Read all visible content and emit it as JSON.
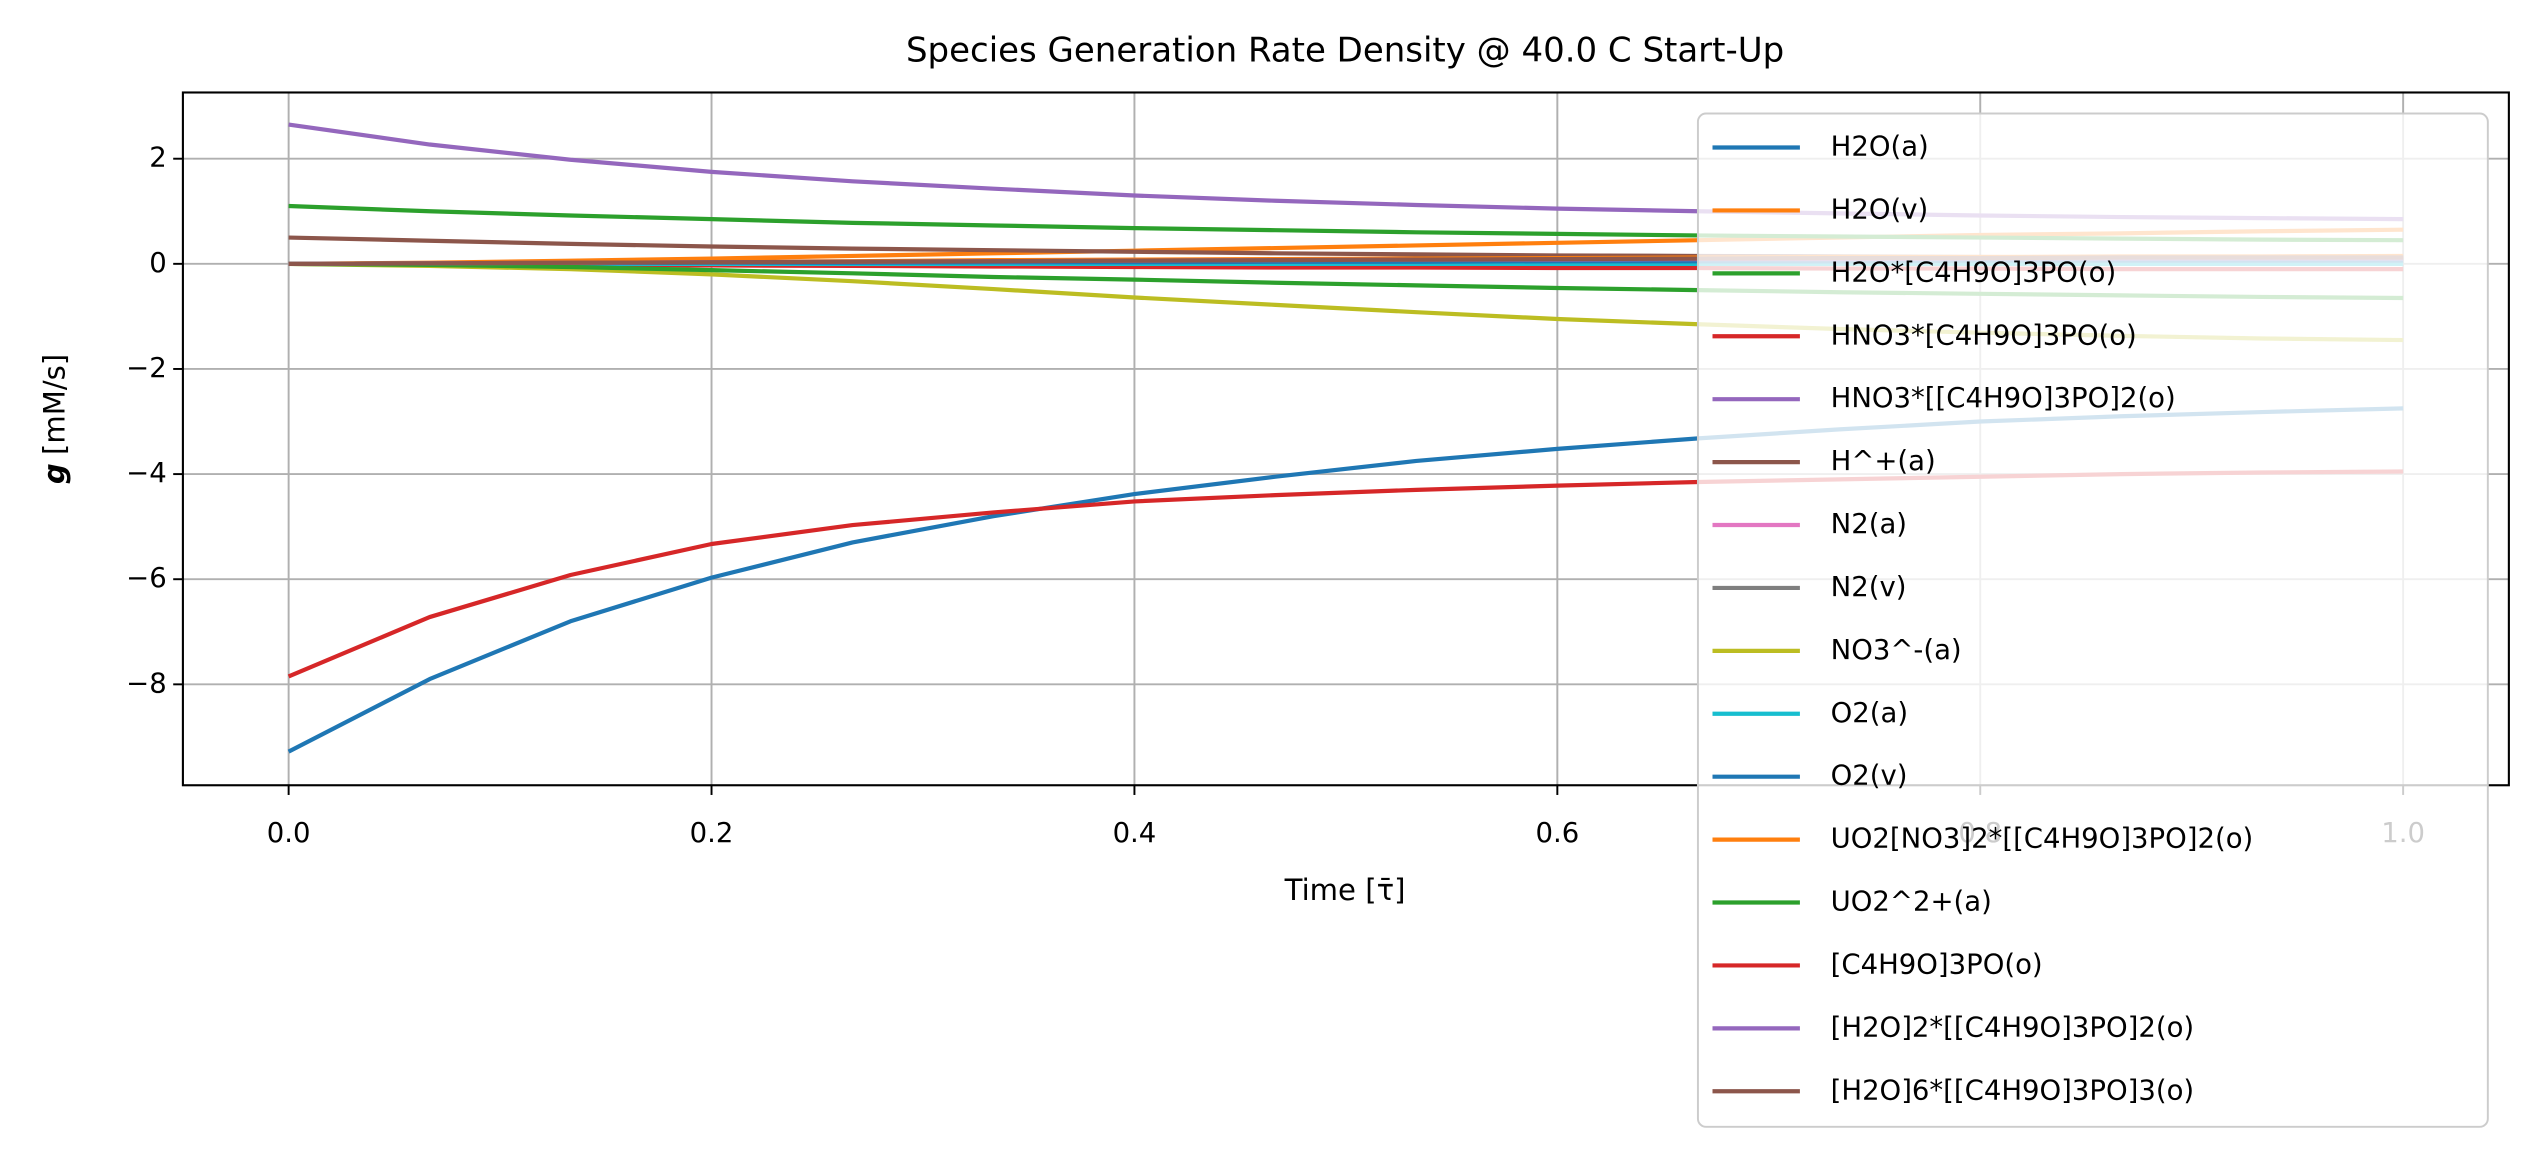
{
  "chart_data": {
    "type": "line",
    "title": "Species Generation Rate Density @ 40.0 C Start-Up",
    "x_label": "Time [τ̄]",
    "y_label_symbol": "g",
    "y_label_unit": "[mM/s]",
    "x": [
      0,
      0.0667,
      0.1333,
      0.2,
      0.2667,
      0.3333,
      0.4,
      0.4667,
      0.5333,
      0.6,
      0.6667,
      0.7333,
      0.8,
      0.8667,
      0.9333,
      1.0
    ],
    "xlim": [
      -0.05,
      1.05
    ],
    "xticks": [
      {
        "value": 0,
        "label": "0.0"
      },
      0.2,
      0.4,
      0.6,
      0.8,
      {
        "value": 1,
        "label": "1.0"
      }
    ],
    "ylim": [
      -9.92,
      3.26
    ],
    "yticks": [
      {
        "value": -8,
        "label": "−8"
      },
      {
        "value": -6,
        "label": "−6"
      },
      {
        "value": -4,
        "label": "−4"
      },
      {
        "value": -2,
        "label": "−2"
      },
      0,
      2
    ],
    "grid": true,
    "legend": "upper right",
    "series": [
      {
        "name": "H2O(a)",
        "color": "#1f77b4",
        "values": [
          -9.28,
          -7.9,
          -6.8,
          -5.97,
          -5.3,
          -4.8,
          -4.38,
          -4.05,
          -3.75,
          -3.52,
          -3.32,
          -3.15,
          -3.0,
          -2.9,
          -2.82,
          -2.75
        ]
      },
      {
        "name": "H2O(v)",
        "color": "#ff7f0e",
        "values": [
          0,
          0.02,
          0.06,
          0.1,
          0.15,
          0.2,
          0.25,
          0.3,
          0.35,
          0.4,
          0.45,
          0.5,
          0.55,
          0.58,
          0.62,
          0.65
        ]
      },
      {
        "name": "H2O*[C4H9O]3PO(o)",
        "color": "#2ca02c",
        "values": [
          1.1,
          1.0,
          0.92,
          0.85,
          0.78,
          0.73,
          0.68,
          0.64,
          0.6,
          0.57,
          0.54,
          0.52,
          0.5,
          0.48,
          0.46,
          0.45
        ]
      },
      {
        "name": "HNO3*[C4H9O]3PO(o)",
        "color": "#d62728",
        "values": [
          0,
          -0.01,
          -0.02,
          -0.03,
          -0.04,
          -0.05,
          -0.06,
          -0.07,
          -0.07,
          -0.08,
          -0.08,
          -0.09,
          -0.09,
          -0.1,
          -0.1,
          -0.1
        ]
      },
      {
        "name": "HNO3*[[C4H9O]3PO]2(o)",
        "color": "#9467bd",
        "values": [
          2.65,
          2.27,
          1.98,
          1.75,
          1.57,
          1.43,
          1.3,
          1.2,
          1.12,
          1.05,
          1.0,
          0.96,
          0.92,
          0.89,
          0.87,
          0.85
        ]
      },
      {
        "name": "H^+(a)",
        "color": "#8c564b",
        "values": [
          0.5,
          0.44,
          0.38,
          0.33,
          0.29,
          0.26,
          0.23,
          0.2,
          0.18,
          0.16,
          0.15,
          0.14,
          0.13,
          0.12,
          0.11,
          0.1
        ]
      },
      {
        "name": "N2(a)",
        "color": "#e377c2",
        "values": [
          0,
          0,
          0,
          0,
          0,
          0,
          0,
          0,
          0,
          0,
          0,
          0,
          0,
          0,
          0,
          0
        ]
      },
      {
        "name": "N2(v)",
        "color": "#7f7f7f",
        "values": [
          0,
          0,
          0,
          0,
          0,
          0,
          0,
          0,
          0,
          0,
          0,
          0,
          0,
          0,
          0,
          0
        ]
      },
      {
        "name": "NO3^-(a)",
        "color": "#bcbd22",
        "values": [
          0,
          -0.04,
          -0.1,
          -0.2,
          -0.33,
          -0.48,
          -0.64,
          -0.78,
          -0.92,
          -1.05,
          -1.15,
          -1.24,
          -1.31,
          -1.37,
          -1.42,
          -1.45
        ]
      },
      {
        "name": "O2(a)",
        "color": "#17becf",
        "values": [
          0,
          0,
          0,
          0,
          0,
          0,
          0,
          0,
          0,
          0,
          0,
          0,
          0,
          0,
          0,
          0
        ]
      },
      {
        "name": "O2(v)",
        "color": "#1f77b4",
        "values": [
          0,
          0.01,
          0.01,
          0.02,
          0.02,
          0.03,
          0.03,
          0.04,
          0.04,
          0.05,
          0.05,
          0.05,
          0.06,
          0.06,
          0.06,
          0.06
        ]
      },
      {
        "name": "UO2[NO3]2*[[C4H9O]3PO]2(o)",
        "color": "#ff7f0e",
        "values": [
          0,
          0.01,
          0.02,
          0.04,
          0.05,
          0.07,
          0.08,
          0.09,
          0.1,
          0.11,
          0.12,
          0.13,
          0.13,
          0.14,
          0.14,
          0.15
        ]
      },
      {
        "name": "UO2^2+(a)",
        "color": "#2ca02c",
        "values": [
          0,
          -0.02,
          -0.06,
          -0.12,
          -0.18,
          -0.25,
          -0.3,
          -0.36,
          -0.41,
          -0.46,
          -0.5,
          -0.54,
          -0.57,
          -0.6,
          -0.63,
          -0.65
        ]
      },
      {
        "name": "[C4H9O]3PO(o)",
        "color": "#d62728",
        "values": [
          -7.85,
          -6.72,
          -5.92,
          -5.33,
          -4.97,
          -4.73,
          -4.52,
          -4.4,
          -4.3,
          -4.22,
          -4.15,
          -4.1,
          -4.05,
          -4.0,
          -3.97,
          -3.95
        ]
      },
      {
        "name": "[H2O]2*[[C4H9O]3PO]2(o)",
        "color": "#9467bd",
        "values": [
          0,
          0.01,
          0.02,
          0.03,
          0.04,
          0.05,
          0.06,
          0.07,
          0.08,
          0.08,
          0.09,
          0.09,
          0.1,
          0.1,
          0.1,
          0.1
        ]
      },
      {
        "name": "[H2O]6*[[C4H9O]3PO]3(o)",
        "color": "#8c564b",
        "values": [
          0,
          0.01,
          0.02,
          0.03,
          0.04,
          0.05,
          0.06,
          0.07,
          0.08,
          0.09,
          0.1,
          0.11,
          0.11,
          0.12,
          0.12,
          0.12
        ]
      }
    ]
  }
}
